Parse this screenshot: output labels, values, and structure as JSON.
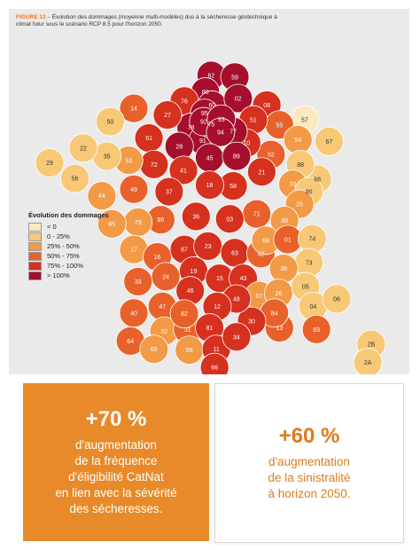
{
  "figure": {
    "label": "FIGURE 13 –",
    "caption": "Évolution des dommages (moyenne multi-modèles) dus à la sécheresse géotechnique à climat futur sous le scénario RCP 8.5 pour l'horizon 2050."
  },
  "legend": {
    "title": "Évolution des dommages",
    "items": [
      {
        "label": "< 0",
        "color": "#fbe9c0"
      },
      {
        "label": "0 - 25%",
        "color": "#f7c977"
      },
      {
        "label": "25% - 50%",
        "color": "#f29a45"
      },
      {
        "label": "50% - 75%",
        "color": "#e8612a"
      },
      {
        "label": "75% - 100%",
        "color": "#d6301f"
      },
      {
        "label": "> 100%",
        "color": "#a50f2d"
      }
    ]
  },
  "departments": [
    {
      "num": "62",
      "cls": 5
    },
    {
      "num": "59",
      "cls": 5
    },
    {
      "num": "80",
      "cls": 5
    },
    {
      "num": "76",
      "cls": 4
    },
    {
      "num": "60",
      "cls": 5
    },
    {
      "num": "02",
      "cls": 5
    },
    {
      "num": "08",
      "cls": 4
    },
    {
      "num": "57",
      "cls": 0
    },
    {
      "num": "55",
      "cls": 3
    },
    {
      "num": "54",
      "cls": 2
    },
    {
      "num": "67",
      "cls": 1
    },
    {
      "num": "68",
      "cls": 1
    },
    {
      "num": "88",
      "cls": 1
    },
    {
      "num": "51",
      "cls": 4
    },
    {
      "num": "52",
      "cls": 3
    },
    {
      "num": "10",
      "cls": 4
    },
    {
      "num": "77",
      "cls": 5
    },
    {
      "num": "95",
      "cls": 5
    },
    {
      "num": "78",
      "cls": 5
    },
    {
      "num": "91",
      "cls": 5
    },
    {
      "num": "75",
      "cls": 5
    },
    {
      "num": "92",
      "cls": 5
    },
    {
      "num": "93",
      "cls": 5
    },
    {
      "num": "94",
      "cls": 5
    },
    {
      "num": "27",
      "cls": 4
    },
    {
      "num": "14",
      "cls": 3
    },
    {
      "num": "50",
      "cls": 1
    },
    {
      "num": "61",
      "cls": 4
    },
    {
      "num": "28",
      "cls": 5
    },
    {
      "num": "45",
      "cls": 5
    },
    {
      "num": "89",
      "cls": 5
    },
    {
      "num": "21",
      "cls": 4
    },
    {
      "num": "70",
      "cls": 2
    },
    {
      "num": "90",
      "cls": 1
    },
    {
      "num": "25",
      "cls": 2
    },
    {
      "num": "39",
      "cls": 2
    },
    {
      "num": "71",
      "cls": 3
    },
    {
      "num": "58",
      "cls": 4
    },
    {
      "num": "18",
      "cls": 4
    },
    {
      "num": "41",
      "cls": 4
    },
    {
      "num": "72",
      "cls": 4
    },
    {
      "num": "53",
      "cls": 2
    },
    {
      "num": "35",
      "cls": 1
    },
    {
      "num": "22",
      "cls": 1
    },
    {
      "num": "29",
      "cls": 1
    },
    {
      "num": "56",
      "cls": 1
    },
    {
      "num": "44",
      "cls": 2
    },
    {
      "num": "49",
      "cls": 3
    },
    {
      "num": "37",
      "cls": 4
    },
    {
      "num": "36",
      "cls": 4
    },
    {
      "num": "03",
      "cls": 4
    },
    {
      "num": "86",
      "cls": 3
    },
    {
      "num": "79",
      "cls": 2
    },
    {
      "num": "85",
      "cls": 2
    },
    {
      "num": "17",
      "cls": 2
    },
    {
      "num": "16",
      "cls": 3
    },
    {
      "num": "87",
      "cls": 4
    },
    {
      "num": "23",
      "cls": 4
    },
    {
      "num": "63",
      "cls": 4
    },
    {
      "num": "42",
      "cls": 3
    },
    {
      "num": "69",
      "cls": 2
    },
    {
      "num": "01",
      "cls": 3
    },
    {
      "num": "74",
      "cls": 1
    },
    {
      "num": "73",
      "cls": 1
    },
    {
      "num": "38",
      "cls": 2
    },
    {
      "num": "19",
      "cls": 4
    },
    {
      "num": "15",
      "cls": 4
    },
    {
      "num": "43",
      "cls": 4
    },
    {
      "num": "07",
      "cls": 2
    },
    {
      "num": "26",
      "cls": 2
    },
    {
      "num": "05",
      "cls": 1
    },
    {
      "num": "04",
      "cls": 1
    },
    {
      "num": "06",
      "cls": 1
    },
    {
      "num": "83",
      "cls": 3
    },
    {
      "num": "13",
      "cls": 3
    },
    {
      "num": "84",
      "cls": 3
    },
    {
      "num": "30",
      "cls": 4
    },
    {
      "num": "48",
      "cls": 4
    },
    {
      "num": "12",
      "cls": 4
    },
    {
      "num": "46",
      "cls": 4
    },
    {
      "num": "24",
      "cls": 3
    },
    {
      "num": "33",
      "cls": 3
    },
    {
      "num": "47",
      "cls": 3
    },
    {
      "num": "40",
      "cls": 3
    },
    {
      "num": "64",
      "cls": 3
    },
    {
      "num": "32",
      "cls": 2
    },
    {
      "num": "65",
      "cls": 2
    },
    {
      "num": "31",
      "cls": 3
    },
    {
      "num": "82",
      "cls": 3
    },
    {
      "num": "81",
      "cls": 4
    },
    {
      "num": "09",
      "cls": 2
    },
    {
      "num": "11",
      "cls": 4
    },
    {
      "num": "34",
      "cls": 4
    },
    {
      "num": "66",
      "cls": 4
    },
    {
      "num": "2B",
      "cls": 1
    },
    {
      "num": "2A",
      "cls": 1
    }
  ],
  "stats": {
    "left": {
      "value": "+70 %",
      "lines": [
        "d'augmentation",
        "de la fréquence",
        "d'éligibilité CatNat",
        "en lien avec la sévérité",
        "des sécheresses."
      ]
    },
    "right": {
      "value": "+60 %",
      "lines": [
        "d'augmentation",
        "de la sinistralité",
        "à horizon 2050."
      ]
    }
  }
}
